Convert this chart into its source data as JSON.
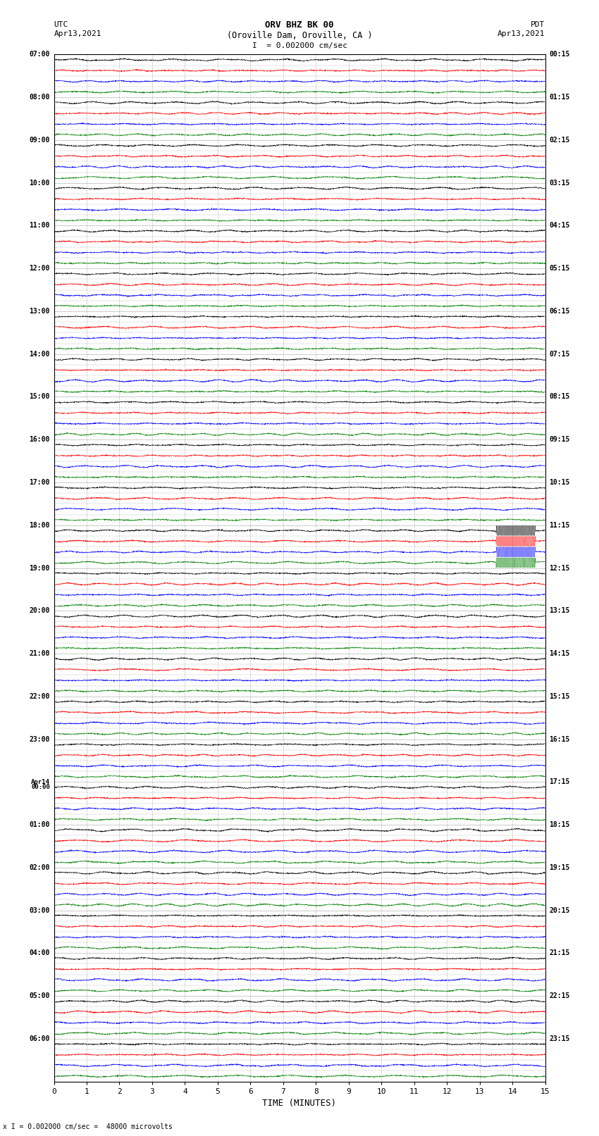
{
  "title_line1": "ORV BHZ BK 00",
  "title_line2": "(Oroville Dam, Oroville, CA )",
  "scale_text": "I = 0.002000 cm/sec",
  "utc_label": "UTC",
  "utc_date": "Apr13,2021",
  "pdt_label": "PDT",
  "pdt_date": "Apr13,2021",
  "bottom_label": "x I = 0.002000 cm/sec =  48000 microvolts",
  "xlabel": "TIME (MINUTES)",
  "num_rows": 24,
  "traces_per_row": 4,
  "minutes_per_row": 15,
  "bg_color": "#ffffff",
  "trace_colors": [
    "black",
    "red",
    "blue",
    "green"
  ],
  "event_row": 11,
  "event_minute": 13.8,
  "event_amplitude": 8.0,
  "left_time_labels": [
    "07:00",
    "",
    "",
    "",
    "08:00",
    "",
    "",
    "",
    "09:00",
    "",
    "",
    "",
    "10:00",
    "",
    "",
    "",
    "11:00",
    "",
    "",
    "",
    "12:00",
    "",
    "",
    "",
    "13:00",
    "",
    "",
    "",
    "14:00",
    "",
    "",
    "",
    "15:00",
    "",
    "",
    "",
    "16:00",
    "",
    "",
    "",
    "17:00",
    "",
    "",
    "",
    "18:00",
    "",
    "",
    "",
    "19:00",
    "",
    "",
    "",
    "20:00",
    "",
    "",
    "",
    "21:00",
    "",
    "",
    "",
    "22:00",
    "",
    "",
    "",
    "23:00",
    "",
    "",
    "",
    "Apr14\n00:00",
    "",
    "",
    "",
    "01:00",
    "",
    "",
    "",
    "02:00",
    "",
    "",
    "",
    "03:00",
    "",
    "",
    "",
    "04:00",
    "",
    "",
    "",
    "05:00",
    "",
    "",
    "",
    "06:00",
    "",
    "",
    ""
  ],
  "right_time_labels": [
    "00:15",
    "",
    "",
    "",
    "01:15",
    "",
    "",
    "",
    "02:15",
    "",
    "",
    "",
    "03:15",
    "",
    "",
    "",
    "04:15",
    "",
    "",
    "",
    "05:15",
    "",
    "",
    "",
    "06:15",
    "",
    "",
    "",
    "07:15",
    "",
    "",
    "",
    "08:15",
    "",
    "",
    "",
    "09:15",
    "",
    "",
    "",
    "10:15",
    "",
    "",
    "",
    "11:15",
    "",
    "",
    "",
    "12:15",
    "",
    "",
    "",
    "13:15",
    "",
    "",
    "",
    "14:15",
    "",
    "",
    "",
    "15:15",
    "",
    "",
    "",
    "16:15",
    "",
    "",
    "",
    "17:15",
    "",
    "",
    "",
    "18:15",
    "",
    "",
    "",
    "19:15",
    "",
    "",
    "",
    "20:15",
    "",
    "",
    "",
    "21:15",
    "",
    "",
    "",
    "22:15",
    "",
    "",
    "",
    "23:15",
    "",
    "",
    ""
  ],
  "grid_color": "#888888",
  "grid_alpha": 0.5,
  "trace_amplitude": 0.08,
  "noise_amplitude": 0.03,
  "time_points": 2700
}
